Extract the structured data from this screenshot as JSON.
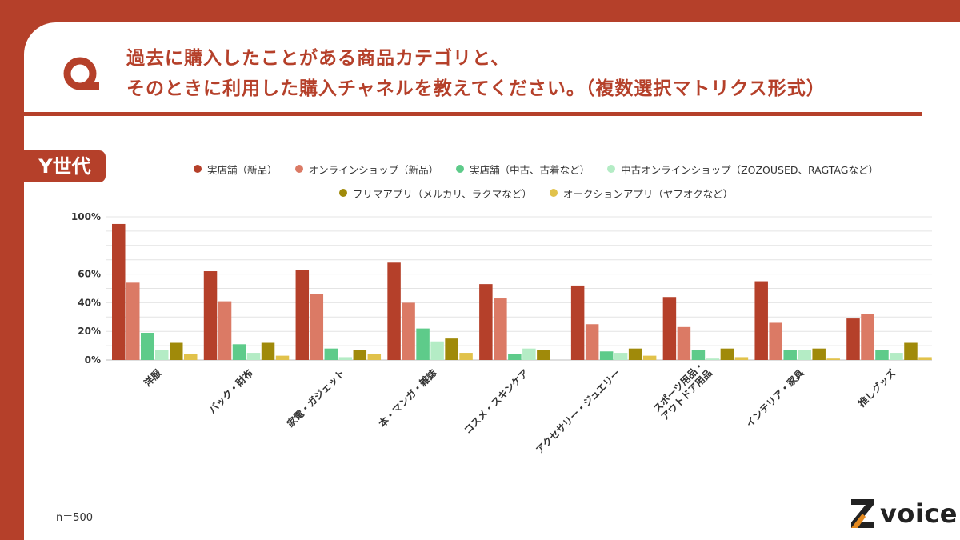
{
  "question": {
    "line1": "過去に購入したことがある商品カテゴリと、",
    "line2": "そのときに利用した購入チャネルを教えてください。（複数選択マトリクス形式）"
  },
  "generation_tag": "Y世代",
  "sample_size": "n＝500",
  "brand": {
    "text": "voice"
  },
  "colors": {
    "accent": "#b5402a",
    "series": [
      "#b5402a",
      "#db7a65",
      "#5ecb8a",
      "#b4ecc5",
      "#a08a0a",
      "#e1c24b"
    ]
  },
  "chart_data": {
    "type": "bar",
    "title": "",
    "xlabel": "",
    "ylabel": "",
    "ylim": [
      0,
      100
    ],
    "y_ticks": [
      "0%",
      "20%",
      "40%",
      "60%",
      "100%"
    ],
    "y_tick_values": [
      0,
      20,
      40,
      60,
      100
    ],
    "grid": true,
    "legend_position": "top",
    "categories": [
      "洋服",
      "バック・財布",
      "家電・ガジェット",
      "本・マンガ・雑誌",
      "コスメ・スキンケア",
      "アクセサリー・ジュエリー",
      "スポーツ用品・アウトドア用品",
      "インテリア・家具",
      "推しグッズ"
    ],
    "category_lines": [
      [
        "洋服"
      ],
      [
        "バック・財布"
      ],
      [
        "家電・ガジェット"
      ],
      [
        "本・マンガ・雑誌"
      ],
      [
        "コスメ・スキンケア"
      ],
      [
        "アクセサリー・ジュエリー"
      ],
      [
        "スポーツ用品・",
        "アウトドア用品"
      ],
      [
        "インテリア・家具"
      ],
      [
        "推しグッズ"
      ]
    ],
    "series": [
      {
        "name": "実店舗（新品）",
        "values": [
          95,
          62,
          63,
          68,
          53,
          52,
          44,
          55,
          29
        ]
      },
      {
        "name": "オンラインショップ（新品）",
        "values": [
          54,
          41,
          46,
          40,
          43,
          25,
          23,
          26,
          32
        ]
      },
      {
        "name": "実店舗（中古、古着など）",
        "values": [
          19,
          11,
          8,
          22,
          4,
          6,
          7,
          7,
          7
        ]
      },
      {
        "name": "中古オンラインショップ（ZOZOUSED、RAGTAGなど）",
        "values": [
          7,
          5,
          2,
          13,
          8,
          5,
          1,
          7,
          5
        ]
      },
      {
        "name": "フリマアプリ（メルカリ、ラクマなど）",
        "values": [
          12,
          12,
          7,
          15,
          7,
          8,
          8,
          8,
          12
        ]
      },
      {
        "name": "オークションアプリ（ヤフオクなど）",
        "values": [
          4,
          3,
          4,
          5,
          0,
          3,
          2,
          1,
          2
        ]
      }
    ]
  }
}
